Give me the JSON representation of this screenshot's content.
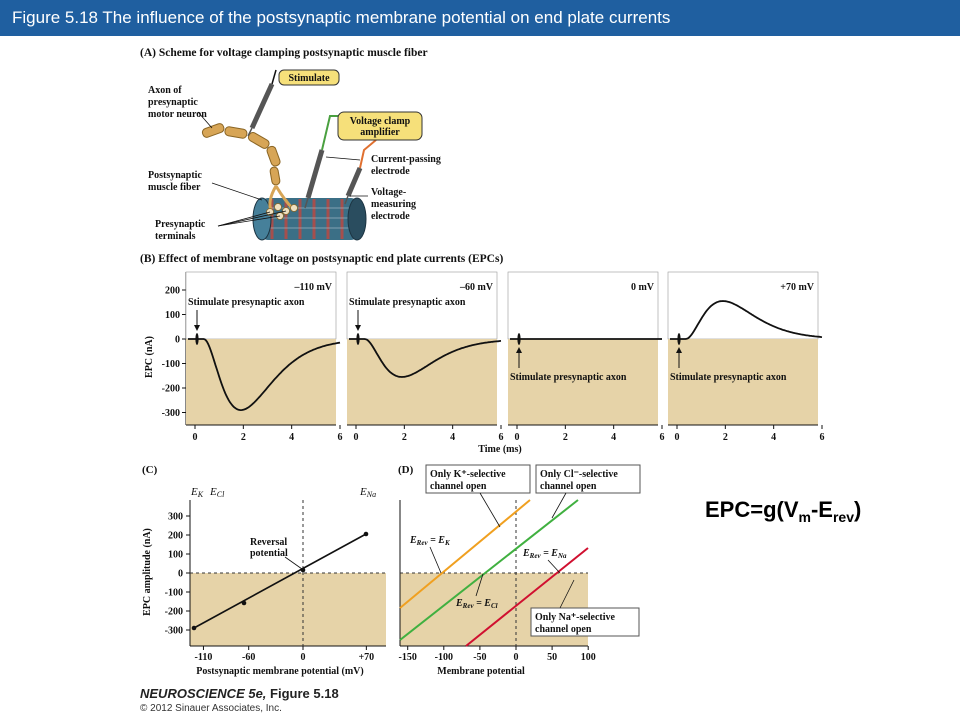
{
  "header": {
    "title": "Figure 5.18  The influence of the postsynaptic membrane potential on end plate currents"
  },
  "panel_a": {
    "title": "(A)  Scheme for voltage clamping postsynaptic muscle fiber",
    "stimulate": "Stimulate",
    "voltage_clamp_1": "Voltage clamp",
    "voltage_clamp_2": "amplifier",
    "axon_1": "Axon of",
    "axon_2": "presynaptic",
    "axon_3": "motor neuron",
    "current_1": "Current-passing",
    "current_2": "electrode",
    "post_1": "Postsynaptic",
    "post_2": "muscle fiber",
    "volt_1": "Voltage-",
    "volt_2": "measuring",
    "volt_3": "electrode",
    "pre_1": "Presynaptic",
    "pre_2": "terminals"
  },
  "panel_b": {
    "title": "(B)  Effect of membrane voltage on postsynaptic end plate currents (EPCs)",
    "ylabel": "EPC (nA)",
    "xlabel": "Time (ms)",
    "stim_label": "Stimulate presynaptic axon",
    "yticks": [
      "200",
      "100",
      "0",
      "-100",
      "-200",
      "-300"
    ],
    "xticks": [
      "0",
      "2",
      "4",
      "6"
    ],
    "voltages": [
      "–110 mV",
      "–60 mV",
      "0 mV",
      "+70 mV"
    ]
  },
  "panel_c": {
    "title": "(C)",
    "ylabel": "EPC amplitude (nA)",
    "xlabel": "Postsynaptic membrane potential (mV)",
    "ek": "E",
    "ek_sub": "K",
    "ecl": "E",
    "ecl_sub": "Cl",
    "ena": "E",
    "ena_sub": "Na",
    "reversal_1": "Reversal",
    "reversal_2": "potential",
    "yticks": [
      "300",
      "200",
      "100",
      "0",
      "-100",
      "-200",
      "-300"
    ],
    "xticks": [
      "-110",
      "-60",
      "0",
      "+70"
    ]
  },
  "panel_d": {
    "title": "(D)",
    "xlabel": "Membrane potential",
    "xticks": [
      "-150",
      "-100",
      "-50",
      "0",
      "50",
      "100"
    ],
    "k_box_1": "Only K⁺-selective",
    "k_box_2": "channel open",
    "cl_box_1": "Only Cl⁻-selective",
    "cl_box_2": "channel open",
    "na_box_1": "Only Na⁺-selective",
    "na_box_2": "channel open",
    "erev_k": "E",
    "erev_k_sub": "Rev",
    "erev_k_eq": " = E",
    "erev_k_eq_sub": "K",
    "erev_cl": "E",
    "erev_cl_sub": "Rev",
    "erev_cl_eq": " = E",
    "erev_cl_eq_sub": "Cl",
    "erev_na": "E",
    "erev_na_sub": "Rev",
    "erev_na_eq": " = E",
    "erev_na_eq_sub": "Na"
  },
  "equation": {
    "prefix": "EPC=g(V",
    "sub1": "m",
    "mid": "-E",
    "sub2": "rev",
    "suffix": ")"
  },
  "credit": {
    "title": "NEUROSCIENCE 5e,",
    "figure": " Figure 5.18",
    "copyright": "© 2012 Sinauer Associates, Inc."
  },
  "colors": {
    "header_bg": "#1f5fa0",
    "plot_fill": "#e6d3a8",
    "k_line": "#f0a020",
    "cl_line": "#40b040",
    "na_line": "#d01030"
  }
}
